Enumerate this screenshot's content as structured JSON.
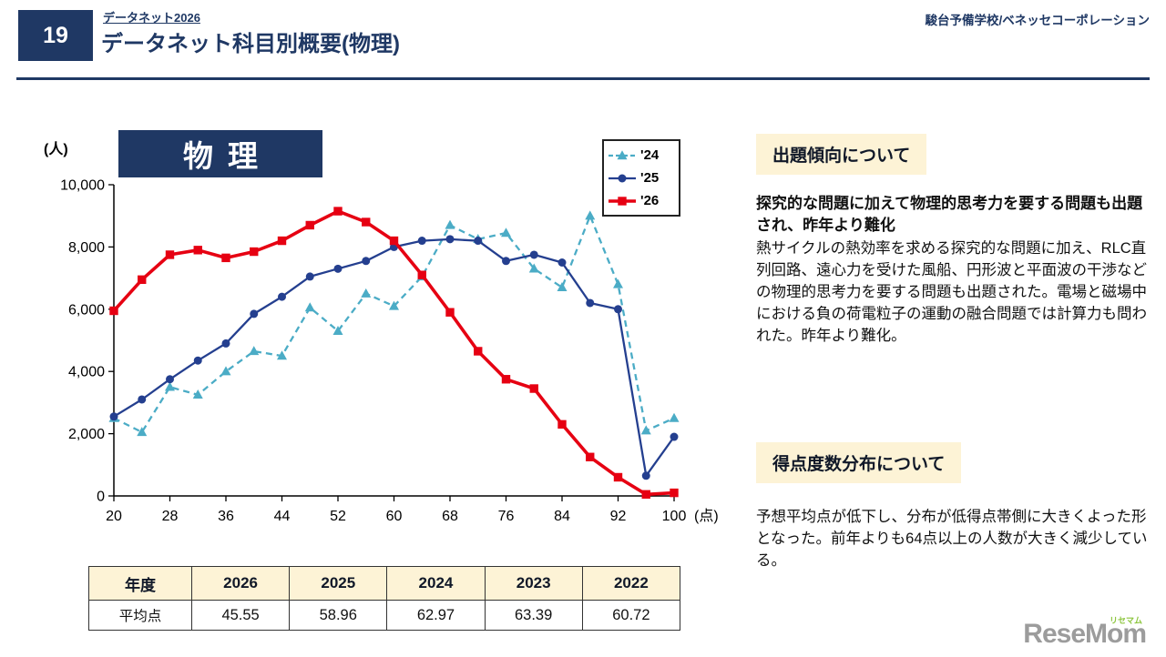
{
  "header": {
    "page_number": "19",
    "link": "データネット2026",
    "title": "データネット科目別概要(物理)",
    "org": "駿台予備学校/ベネッセコーポレーション"
  },
  "chart_data": {
    "type": "line",
    "title": "物理",
    "xlabel": "(点)",
    "ylabel": "(人)",
    "xlim": [
      20,
      100
    ],
    "ylim": [
      0,
      10000
    ],
    "xticks": [
      20,
      28,
      36,
      44,
      52,
      60,
      68,
      76,
      84,
      92,
      100
    ],
    "yticks": [
      0,
      2000,
      4000,
      6000,
      8000,
      10000
    ],
    "grid": false,
    "legend_position": "top-right",
    "x": [
      20,
      24,
      28,
      32,
      36,
      40,
      44,
      48,
      52,
      56,
      60,
      64,
      68,
      72,
      76,
      80,
      84,
      88,
      92,
      96,
      100
    ],
    "series": [
      {
        "name": "'24",
        "color": "#4bacc6",
        "line": "dashed",
        "marker": "triangle",
        "values": [
          2500,
          2050,
          3500,
          3250,
          4000,
          4650,
          4500,
          6050,
          5300,
          6500,
          6100,
          7050,
          8700,
          8250,
          8450,
          7300,
          6700,
          9000,
          6800,
          2100,
          2500
        ]
      },
      {
        "name": "'25",
        "color": "#243f8f",
        "line": "solid",
        "marker": "circle",
        "values": [
          2550,
          3100,
          3750,
          4350,
          4900,
          5850,
          6400,
          7050,
          7300,
          7550,
          8000,
          8200,
          8250,
          8200,
          7550,
          7750,
          7500,
          6200,
          6000,
          650,
          1900
        ]
      },
      {
        "name": "'26",
        "color": "#e60012",
        "line": "solid",
        "marker": "square",
        "values": [
          5950,
          6950,
          7750,
          7900,
          7650,
          7850,
          8200,
          8700,
          9150,
          8800,
          8200,
          7100,
          5900,
          4650,
          3750,
          3450,
          2300,
          1250,
          600,
          50,
          100
        ]
      }
    ]
  },
  "table": {
    "header": [
      "年度",
      "2026",
      "2025",
      "2024",
      "2023",
      "2022"
    ],
    "row_label": "平均点",
    "values": [
      "45.55",
      "58.96",
      "62.97",
      "63.39",
      "60.72"
    ]
  },
  "sections": {
    "trend": {
      "heading": "出題傾向について",
      "lead": "探究的な問題に加えて物理的思考力を要する問題も出題され、昨年より難化",
      "body": "熱サイクルの熱効率を求める探究的な問題に加え、RLC直列回路、遠心力を受けた風船、円形波と平面波の干渉などの物理的思考力を要する問題も出題された。電場と磁場中における負の荷電粒子の運動の融合問題では計算力も問われた。昨年より難化。"
    },
    "distribution": {
      "heading": "得点度数分布について",
      "body": "予想平均点が低下し、分布が低得点帯側に大きくよった形となった。前年よりも64点以上の人数が大きく減少している。"
    }
  },
  "logo": {
    "text": "ReseMom",
    "sub": "リセマム"
  },
  "colors": {
    "navy": "#1f3864",
    "cream": "#fdf3d6",
    "red": "#e60012",
    "blue": "#243f8f",
    "cyan": "#4bacc6"
  }
}
